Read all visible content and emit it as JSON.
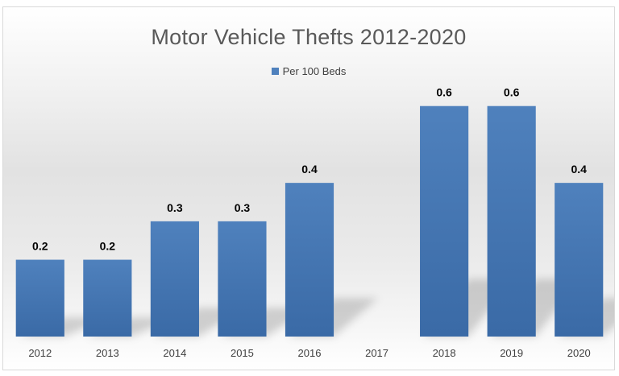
{
  "chart_data": {
    "type": "bar",
    "title": "Motor Vehicle Thefts 2012-2020",
    "categories": [
      "2012",
      "2013",
      "2014",
      "2015",
      "2016",
      "2017",
      "2018",
      "2019",
      "2020"
    ],
    "series": [
      {
        "name": "Per 100 Beds",
        "values": [
          0.2,
          0.2,
          0.3,
          0.3,
          0.4,
          null,
          0.6,
          0.6,
          0.4
        ],
        "labels": [
          "0.2",
          "0.2",
          "0.3",
          "0.3",
          "0.4",
          "",
          "0.6",
          "0.6",
          "0.4"
        ]
      }
    ],
    "xlabel": "",
    "ylabel": "",
    "ylim": [
      0,
      0.7
    ],
    "grid": false,
    "legend_position": "top",
    "data_labels": true,
    "colors": {
      "bar": "#4f81bd",
      "bar_dark": "#3a6aa6",
      "title": "#595959",
      "label": "#000000",
      "tick": "#404040"
    }
  }
}
